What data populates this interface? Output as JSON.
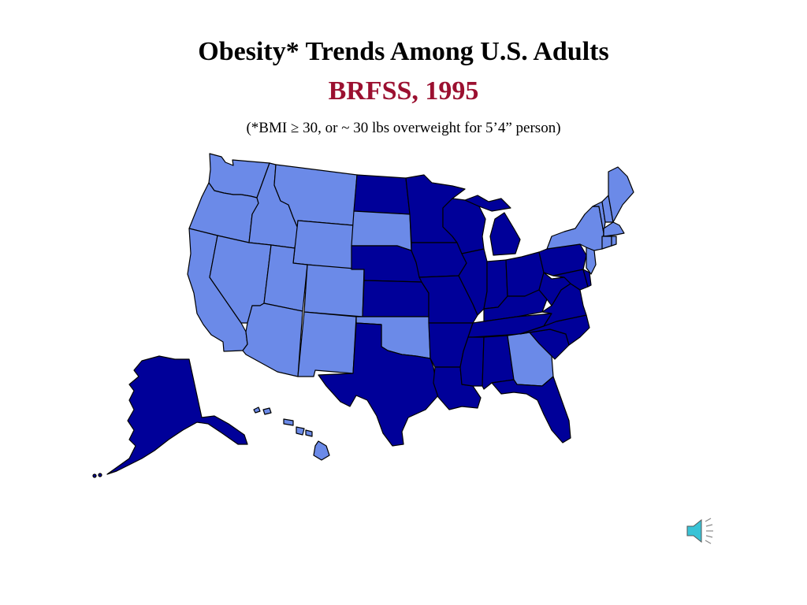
{
  "slide": {
    "title": "Obesity* Trends Among U.S. Adults",
    "subtitle": "BRFSS, 1995",
    "note": "(*BMI ≥ 30, or ~ 30 lbs overweight for 5’4” person)"
  },
  "colors": {
    "subtitle": "#9b1030",
    "category_light": "#6b8ae8",
    "category_dark": "#000099",
    "speaker_icon": "#39c3d6"
  },
  "map": {
    "regions": [
      {
        "name": "WA",
        "category": "light"
      },
      {
        "name": "OR",
        "category": "light"
      },
      {
        "name": "CA",
        "category": "light"
      },
      {
        "name": "ID",
        "category": "light"
      },
      {
        "name": "NV",
        "category": "light"
      },
      {
        "name": "MT",
        "category": "light"
      },
      {
        "name": "WY",
        "category": "light"
      },
      {
        "name": "UT",
        "category": "light"
      },
      {
        "name": "AZ",
        "category": "light"
      },
      {
        "name": "CO",
        "category": "light"
      },
      {
        "name": "NM",
        "category": "light"
      },
      {
        "name": "SD",
        "category": "light"
      },
      {
        "name": "OK",
        "category": "light"
      },
      {
        "name": "GA",
        "category": "light"
      },
      {
        "name": "HI",
        "category": "light"
      },
      {
        "name": "NY",
        "category": "light"
      },
      {
        "name": "VT",
        "category": "light"
      },
      {
        "name": "NH",
        "category": "light"
      },
      {
        "name": "ME",
        "category": "light"
      },
      {
        "name": "MA",
        "category": "light"
      },
      {
        "name": "CT",
        "category": "light"
      },
      {
        "name": "RI",
        "category": "light"
      },
      {
        "name": "NJ",
        "category": "light"
      },
      {
        "name": "ND",
        "category": "dark"
      },
      {
        "name": "NE",
        "category": "dark"
      },
      {
        "name": "KS",
        "category": "dark"
      },
      {
        "name": "TX",
        "category": "dark"
      },
      {
        "name": "MN",
        "category": "dark"
      },
      {
        "name": "IA",
        "category": "dark"
      },
      {
        "name": "MO",
        "category": "dark"
      },
      {
        "name": "AR",
        "category": "dark"
      },
      {
        "name": "LA",
        "category": "dark"
      },
      {
        "name": "WI",
        "category": "dark"
      },
      {
        "name": "IL",
        "category": "dark"
      },
      {
        "name": "MI",
        "category": "dark"
      },
      {
        "name": "IN",
        "category": "dark"
      },
      {
        "name": "OH",
        "category": "dark"
      },
      {
        "name": "KY",
        "category": "dark"
      },
      {
        "name": "TN",
        "category": "dark"
      },
      {
        "name": "MS",
        "category": "dark"
      },
      {
        "name": "AL",
        "category": "dark"
      },
      {
        "name": "FL",
        "category": "dark"
      },
      {
        "name": "SC",
        "category": "dark"
      },
      {
        "name": "NC",
        "category": "dark"
      },
      {
        "name": "VA",
        "category": "dark"
      },
      {
        "name": "WV",
        "category": "dark"
      },
      {
        "name": "PA",
        "category": "dark"
      },
      {
        "name": "MD",
        "category": "dark"
      },
      {
        "name": "DE",
        "category": "dark"
      },
      {
        "name": "AK",
        "category": "dark"
      }
    ]
  },
  "speaker": {
    "icon": "speaker-icon"
  }
}
